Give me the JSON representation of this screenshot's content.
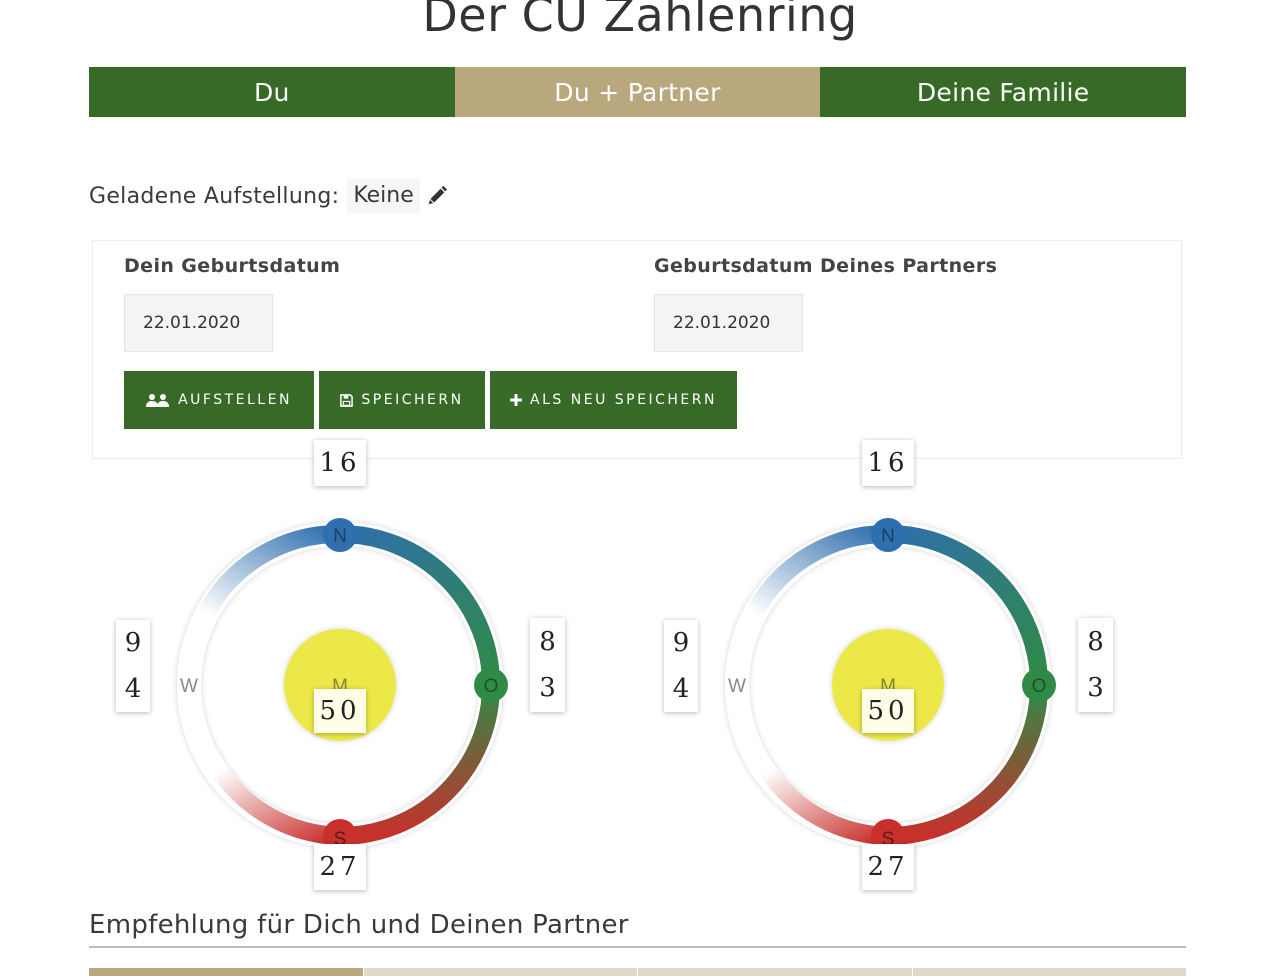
{
  "page": {
    "title": "Der CU Zahlenring"
  },
  "tabs": [
    {
      "label": "Du",
      "active": false
    },
    {
      "label": "Du + Partner",
      "active": true
    },
    {
      "label": "Deine Familie",
      "active": false
    }
  ],
  "loaded": {
    "label": "Geladene Aufstellung:",
    "value": "Keine",
    "edit_icon": "pencil-icon"
  },
  "form": {
    "birth_label": "Dein Geburtsdatum",
    "birth_value": "22.01.2020",
    "partner_label": "Geburtsdatum Deines Partners",
    "partner_value": "22.01.2020"
  },
  "buttons": {
    "aufstellen": {
      "label": "AUFSTELLEN",
      "icon": "users-icon"
    },
    "speichern": {
      "label": "SPEICHERN",
      "icon": "floppy-disk-icon"
    },
    "neu": {
      "label": "ALS NEU SPEICHERN",
      "icon": "plus-icon"
    }
  },
  "rings": [
    {
      "north": "16",
      "east_top": "8",
      "east_bottom": "3",
      "west_top": "9",
      "west_bottom": "4",
      "south": "27",
      "center": "50",
      "labels": {
        "n": "N",
        "o": "O",
        "s": "S",
        "w": "W",
        "m": "M"
      }
    },
    {
      "north": "16",
      "east_top": "8",
      "east_bottom": "3",
      "west_top": "9",
      "west_bottom": "4",
      "south": "27",
      "center": "50",
      "labels": {
        "n": "N",
        "o": "O",
        "s": "S",
        "w": "W",
        "m": "M"
      }
    }
  ],
  "colors": {
    "primary_green": "#376a27",
    "tab_active": "#b9a77e",
    "north_blue": "#2f6fae",
    "east_green": "#2f8a46",
    "south_red": "#c8302c",
    "center_yellow": "#ece84a"
  },
  "recommendation": {
    "title": "Empfehlung für Dich und Deinen Partner"
  }
}
